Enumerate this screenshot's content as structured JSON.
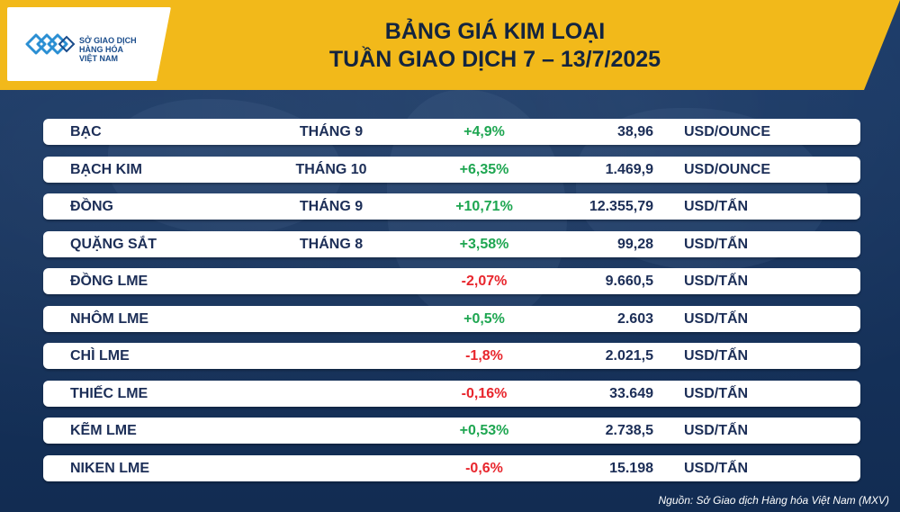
{
  "logo": {
    "line1": "SỞ GIAO DỊCH",
    "line2": "HÀNG HÓA",
    "line3": "VIỆT NAM"
  },
  "title": {
    "line1": "BẢNG GIÁ KIM LOẠI",
    "line2": "TUẦN GIAO DỊCH 7 – 13/7/2025"
  },
  "colors": {
    "banner": "#f2b91a",
    "background": "#16345f",
    "positive": "#1ea651",
    "negative": "#e8262d",
    "text": "#1c2e57"
  },
  "rows": [
    {
      "name": "BẠC",
      "month": "THÁNG 9",
      "change": "+4,9%",
      "price": "38,96",
      "unit": "USD/OUNCE"
    },
    {
      "name": "BẠCH KIM",
      "month": "THÁNG 10",
      "change": "+6,35%",
      "price": "1.469,9",
      "unit": "USD/OUNCE"
    },
    {
      "name": "ĐỒNG",
      "month": "THÁNG 9",
      "change": "+10,71%",
      "price": "12.355,79",
      "unit": "USD/TẤN"
    },
    {
      "name": "QUẶNG SẮT",
      "month": "THÁNG 8",
      "change": "+3,58%",
      "price": "99,28",
      "unit": "USD/TẤN"
    },
    {
      "name": "ĐỒNG LME",
      "month": "",
      "change": "-2,07%",
      "price": "9.660,5",
      "unit": "USD/TẤN"
    },
    {
      "name": "NHÔM LME",
      "month": "",
      "change": "+0,5%",
      "price": "2.603",
      "unit": "USD/TẤN"
    },
    {
      "name": "CHÌ LME",
      "month": "",
      "change": "-1,8%",
      "price": "2.021,5",
      "unit": "USD/TẤN"
    },
    {
      "name": "THIẾC LME",
      "month": "",
      "change": "-0,16%",
      "price": "33.649",
      "unit": "USD/TẤN"
    },
    {
      "name": "KẼM LME",
      "month": "",
      "change": "+0,53%",
      "price": "2.738,5",
      "unit": "USD/TẤN"
    },
    {
      "name": "NIKEN LME",
      "month": "",
      "change": "-0,6%",
      "price": "15.198",
      "unit": "USD/TẤN"
    }
  ],
  "source": "Nguồn: Sở Giao dịch Hàng hóa Việt Nam (MXV)"
}
